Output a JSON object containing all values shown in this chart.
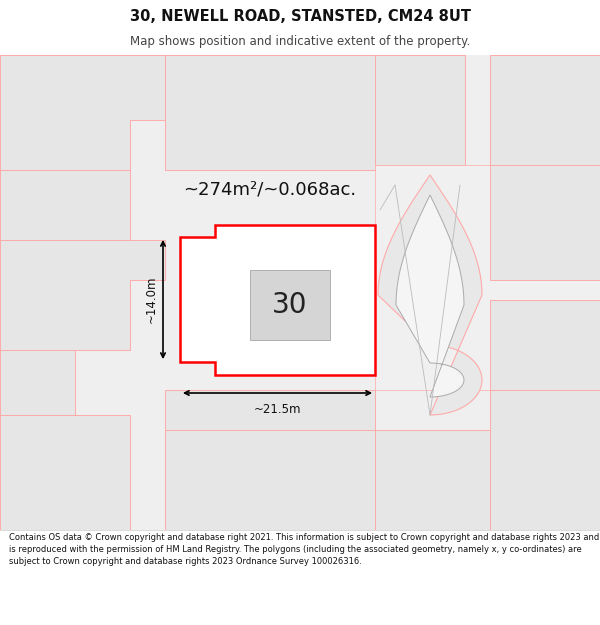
{
  "title_line1": "30, NEWELL ROAD, STANSTED, CM24 8UT",
  "title_line2": "Map shows position and indicative extent of the property.",
  "area_label": "~274m²/~0.068ac.",
  "width_label": "~21.5m",
  "height_label": "~14.0m",
  "number_label": "30",
  "footer_text": "Contains OS data © Crown copyright and database right 2021. This information is subject to Crown copyright and database rights 2023 and is reproduced with the permission of HM Land Registry. The polygons (including the associated geometry, namely x, y co-ordinates) are subject to Crown copyright and database rights 2023 Ordnance Survey 100026316.",
  "map_bg": "#efefef",
  "parcel_fill": "#e6e6e6",
  "parcel_edge": "#c8c8c8",
  "red_line": "#ff0000",
  "pink_line": "#ffaaaa",
  "road_fill": "#ffffff",
  "road_edge": "#aaaaaa",
  "bldg_fill": "#d8d8d8",
  "bldg_edge": "#bbbbbb",
  "title_bg": "#ffffff",
  "footer_bg": "#ffffff",
  "text_dark": "#111111",
  "text_mid": "#444444"
}
